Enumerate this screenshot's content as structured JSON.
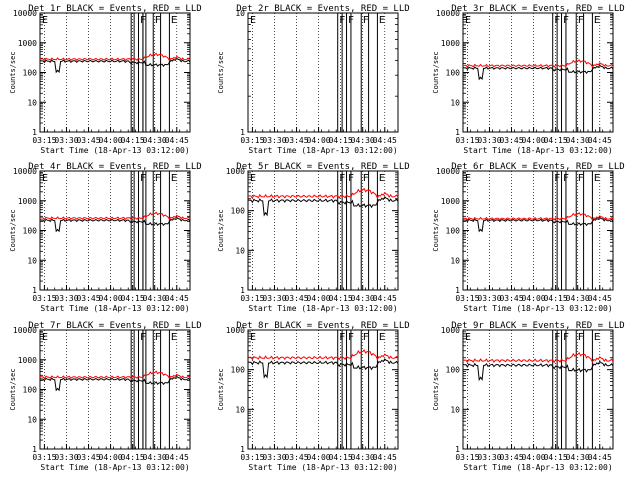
{
  "figure": {
    "rows": 3,
    "cols": 3,
    "series_colors": {
      "events": "#000000",
      "lld": "#ff0000"
    },
    "x_axis": {
      "tick_labels": [
        "03:15",
        "03:30",
        "03:45",
        "04:00",
        "04:15",
        "04:30",
        "04:45"
      ],
      "xlabel": "Start Time (18-Apr-13 03:12:00)",
      "range_minutes_from_start": [
        0,
        102
      ]
    },
    "marker_label": "F",
    "end_marker_label": "E",
    "dotted_vertical_grid": true,
    "y_scale": "log"
  },
  "chart_data": [
    {
      "type": "line",
      "title": "Det 1r BLACK = Events, RED = LLD",
      "ylabel": "Counts/sec",
      "ylim": [
        1,
        10000
      ],
      "yticks": [
        "1",
        "10",
        "100",
        "1000",
        "10000"
      ],
      "has_data": true,
      "events_level": 240,
      "lld_level": 280,
      "flare_intervals": [
        [
          67,
          70
        ],
        [
          77,
          82
        ]
      ],
      "end_marker_at": [
        88,
        97
      ],
      "single_line_marks": [
        [
          62,
          64
        ],
        [
          70,
          72
        ]
      ]
    },
    {
      "type": "line",
      "title": "Det 2r BLACK = Events, RED = LLD",
      "ylabel": "Counts/sec",
      "ylim": [
        1,
        10
      ],
      "yticks": [
        "1",
        "10"
      ],
      "has_data": false,
      "events_level": 0,
      "lld_level": 0,
      "flare_intervals": [
        [
          61,
          64
        ],
        [
          67,
          70
        ],
        [
          77,
          82
        ]
      ],
      "end_marker_at": [
        88,
        97
      ],
      "single_line_marks": []
    },
    {
      "type": "line",
      "title": "Det 3r BLACK = Events, RED = LLD",
      "ylabel": "Counts/sec",
      "ylim": [
        1,
        10000
      ],
      "yticks": [
        "1",
        "10",
        "100",
        "1000",
        "10000"
      ],
      "has_data": true,
      "events_level": 140,
      "lld_level": 170,
      "flare_intervals": [
        [
          61,
          64
        ],
        [
          67,
          70
        ],
        [
          77,
          82
        ]
      ],
      "end_marker_at": [
        88,
        97
      ],
      "single_line_marks": []
    },
    {
      "type": "line",
      "title": "Det 4r BLACK = Events, RED = LLD",
      "ylabel": "Counts/sec",
      "ylim": [
        1,
        10000
      ],
      "yticks": [
        "1",
        "10",
        "100",
        "1000",
        "10000"
      ],
      "has_data": true,
      "events_level": 220,
      "lld_level": 260,
      "flare_intervals": [
        [
          67,
          70
        ],
        [
          77,
          82
        ]
      ],
      "end_marker_at": [
        88,
        97
      ],
      "single_line_marks": [
        [
          62,
          64
        ],
        [
          70,
          72
        ]
      ]
    },
    {
      "type": "line",
      "title": "Det 5r BLACK = Events, RED = LLD",
      "ylabel": "Counts/sec",
      "ylim": [
        1,
        1000
      ],
      "yticks": [
        "1",
        "10",
        "100",
        "1000"
      ],
      "has_data": true,
      "events_level": 180,
      "lld_level": 230,
      "flare_intervals": [
        [
          61,
          64
        ],
        [
          67,
          70
        ],
        [
          77,
          82
        ]
      ],
      "end_marker_at": [
        88,
        97
      ],
      "single_line_marks": []
    },
    {
      "type": "line",
      "title": "Det 6r BLACK = Events, RED = LLD",
      "ylabel": "Counts/sec",
      "ylim": [
        1,
        10000
      ],
      "yticks": [
        "1",
        "10",
        "100",
        "1000",
        "10000"
      ],
      "has_data": true,
      "events_level": 220,
      "lld_level": 250,
      "flare_intervals": [
        [
          61,
          64
        ],
        [
          67,
          70
        ],
        [
          77,
          82
        ]
      ],
      "end_marker_at": [
        88,
        97
      ],
      "single_line_marks": []
    },
    {
      "type": "line",
      "title": "Det 7r BLACK = Events, RED = LLD",
      "ylabel": "Counts/sec",
      "ylim": [
        1,
        10000
      ],
      "yticks": [
        "1",
        "10",
        "100",
        "1000",
        "10000"
      ],
      "has_data": true,
      "events_level": 220,
      "lld_level": 260,
      "flare_intervals": [
        [
          67,
          70
        ],
        [
          77,
          82
        ]
      ],
      "end_marker_at": [
        88,
        97
      ],
      "single_line_marks": [
        [
          62,
          64
        ],
        [
          70,
          72
        ]
      ]
    },
    {
      "type": "line",
      "title": "Det 8r BLACK = Events, RED = LLD",
      "ylabel": "Counts/sec",
      "ylim": [
        1,
        1000
      ],
      "yticks": [
        "1",
        "10",
        "100",
        "1000"
      ],
      "has_data": true,
      "events_level": 150,
      "lld_level": 200,
      "flare_intervals": [
        [
          61,
          64
        ],
        [
          67,
          70
        ],
        [
          77,
          82
        ]
      ],
      "end_marker_at": [
        88,
        97
      ],
      "single_line_marks": []
    },
    {
      "type": "line",
      "title": "Det 9r BLACK = Events, RED = LLD",
      "ylabel": "Counts/sec",
      "ylim": [
        1,
        1000
      ],
      "yticks": [
        "1",
        "10",
        "100",
        "1000"
      ],
      "has_data": true,
      "events_level": 130,
      "lld_level": 170,
      "flare_intervals": [
        [
          61,
          64
        ],
        [
          67,
          70
        ],
        [
          77,
          82
        ]
      ],
      "end_marker_at": [
        88,
        97
      ],
      "single_line_marks": []
    }
  ]
}
